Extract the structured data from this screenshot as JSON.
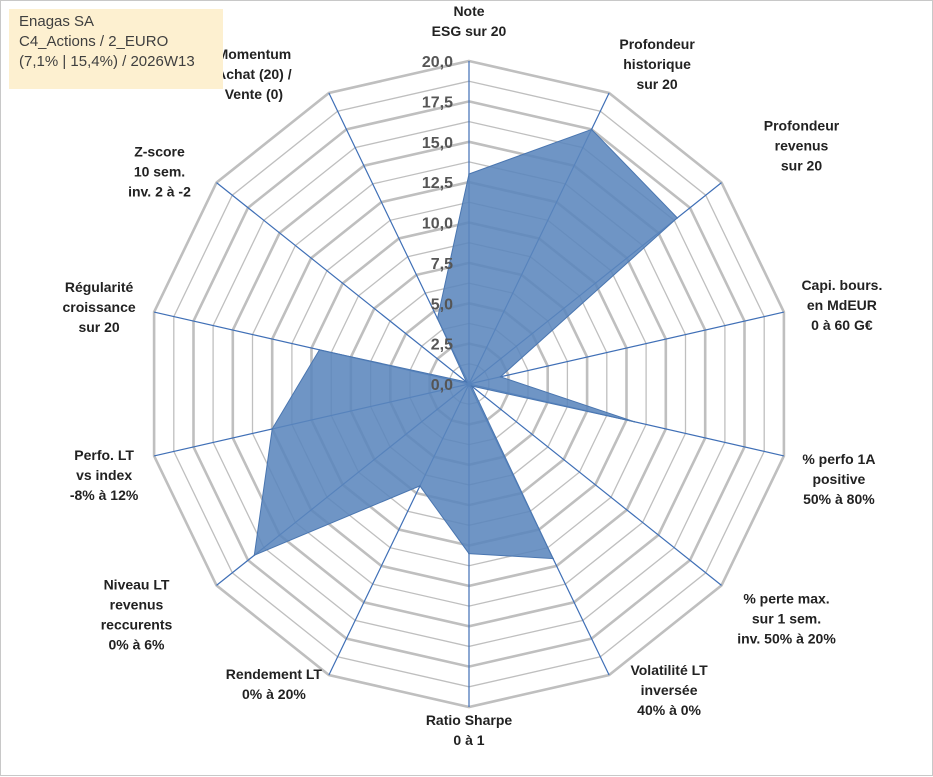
{
  "info_box": {
    "line1": "Enagas SA",
    "line2": "C4_Actions / 2_EURO",
    "line3": "(7,1% | 15,4%) / 2026W13"
  },
  "colors": {
    "series_fill": "#5b86bd",
    "series_stroke": "#4a76b0",
    "spoke": "#3f6fb6",
    "grid": "#bfbfbf",
    "info_bg": "#fdf0d0"
  },
  "chart_data": {
    "type": "radar",
    "title": "",
    "rmin": 0,
    "rmax": 20,
    "major_step": 2.5,
    "minor_step": 1.25,
    "tick_labels": [
      "0,0",
      "2,5",
      "5,0",
      "7,5",
      "10,0",
      "12,5",
      "15,0",
      "17,5",
      "20,0"
    ],
    "axes": [
      [
        "Note",
        "ESG sur 20"
      ],
      [
        "Profondeur",
        "historique",
        "sur 20"
      ],
      [
        "Profondeur",
        "revenus",
        "sur 20"
      ],
      [
        "Capi. bours.",
        "en MdEUR",
        "0 à 60 G€"
      ],
      [
        "% perfo 1A",
        "positive",
        "50% à 80%"
      ],
      [
        "% perte max.",
        "sur 1 sem.",
        "inv. 50% à 20%"
      ],
      [
        "Volatilité LT",
        "inversée",
        "40% à 0%"
      ],
      [
        "Ratio Sharpe",
        "0 à 1"
      ],
      [
        "Rendement LT",
        "0% à 20%"
      ],
      [
        "Niveau LT",
        "revenus",
        "reccurents",
        "0% à 6%"
      ],
      [
        "Perfo. LT",
        "vs index",
        "-8% à 12%"
      ],
      [
        "Régularité",
        "croissance",
        "sur 20"
      ],
      [
        "Z-score",
        "10 sem.",
        "inv. 2 à -2"
      ],
      [
        "Momentum",
        "Achat (20) /",
        "Vente (0)"
      ]
    ],
    "values": [
      13.0,
      17.5,
      16.5,
      2.0,
      10.5,
      0.2,
      12.0,
      10.5,
      7.0,
      17.0,
      12.5,
      9.5,
      0.2,
      4.5
    ]
  }
}
